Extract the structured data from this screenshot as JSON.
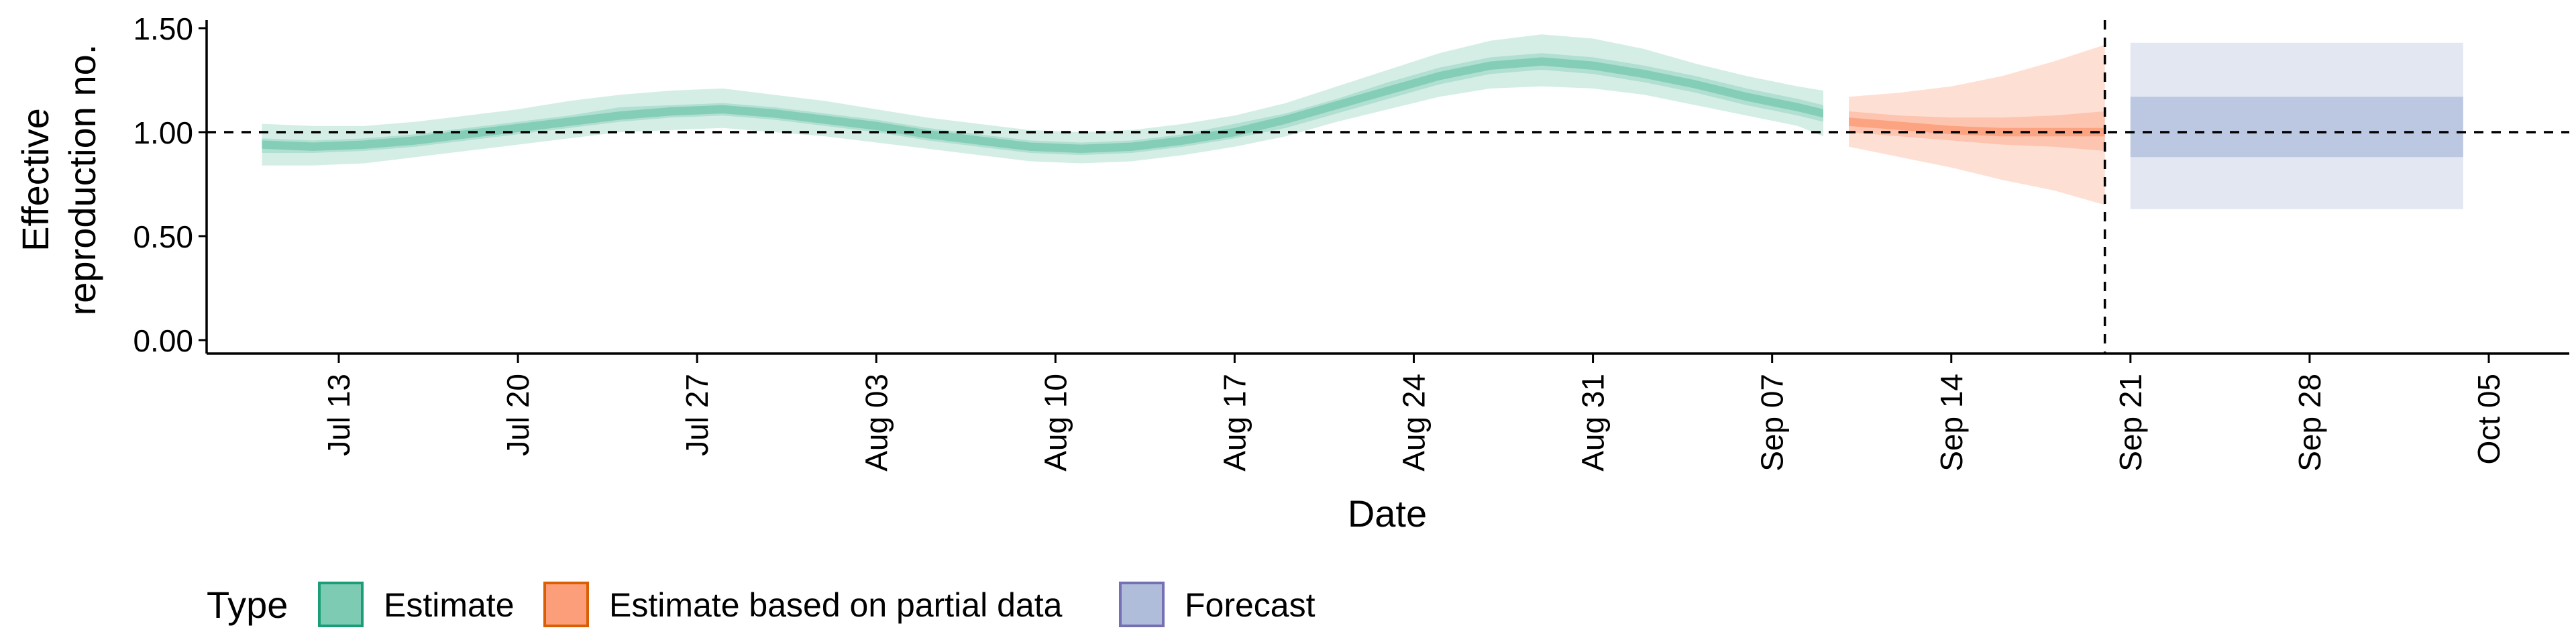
{
  "chart_data": {
    "type": "area",
    "title": "",
    "xlabel": "Date",
    "ylabel_lines": [
      "Effective",
      "reproduction no."
    ],
    "xlim": [
      "2020-07-05",
      "2020-10-07"
    ],
    "ylim": [
      0,
      1.55
    ],
    "yticks": [
      0.0,
      0.5,
      1.0,
      1.5
    ],
    "ytick_labels": [
      "0.00",
      "0.50",
      "1.00",
      "1.50"
    ],
    "xticks": [
      {
        "date": "2020-07-13",
        "label": "Jul 13"
      },
      {
        "date": "2020-07-20",
        "label": "Jul 20"
      },
      {
        "date": "2020-07-27",
        "label": "Jul 27"
      },
      {
        "date": "2020-08-03",
        "label": "Aug 03"
      },
      {
        "date": "2020-08-10",
        "label": "Aug 10"
      },
      {
        "date": "2020-08-17",
        "label": "Aug 17"
      },
      {
        "date": "2020-08-24",
        "label": "Aug 24"
      },
      {
        "date": "2020-08-31",
        "label": "Aug 31"
      },
      {
        "date": "2020-09-07",
        "label": "Sep 07"
      },
      {
        "date": "2020-09-14",
        "label": "Sep 14"
      },
      {
        "date": "2020-09-21",
        "label": "Sep 21"
      },
      {
        "date": "2020-09-28",
        "label": "Sep 28"
      },
      {
        "date": "2020-10-05",
        "label": "Oct 05"
      }
    ],
    "reference_line": {
      "y": 1.0,
      "style": "dashed"
    },
    "forecast_start_line": {
      "date": "2020-09-20",
      "style": "dashed"
    },
    "grid": false,
    "legend": {
      "title": "Type",
      "position": "bottom-left",
      "entries": [
        "Estimate",
        "Estimate based on partial data",
        "Forecast"
      ]
    },
    "series": [
      {
        "name": "Estimate",
        "fill": "#66c2a5",
        "border": "#1b9e77",
        "points": [
          {
            "date": "2020-07-10",
            "median": 0.94,
            "lo50": 0.9,
            "hi50": 0.97,
            "lo90": 0.84,
            "hi90": 1.04
          },
          {
            "date": "2020-07-12",
            "median": 0.93,
            "lo50": 0.9,
            "hi50": 0.96,
            "lo90": 0.84,
            "hi90": 1.03
          },
          {
            "date": "2020-07-14",
            "median": 0.94,
            "lo50": 0.91,
            "hi50": 0.97,
            "lo90": 0.85,
            "hi90": 1.03
          },
          {
            "date": "2020-07-16",
            "median": 0.96,
            "lo50": 0.93,
            "hi50": 0.99,
            "lo90": 0.88,
            "hi90": 1.05
          },
          {
            "date": "2020-07-18",
            "median": 0.99,
            "lo50": 0.96,
            "hi50": 1.02,
            "lo90": 0.91,
            "hi90": 1.08
          },
          {
            "date": "2020-07-20",
            "median": 1.02,
            "lo50": 0.99,
            "hi50": 1.05,
            "lo90": 0.94,
            "hi90": 1.11
          },
          {
            "date": "2020-07-22",
            "median": 1.05,
            "lo50": 1.02,
            "hi50": 1.08,
            "lo90": 0.97,
            "hi90": 1.15
          },
          {
            "date": "2020-07-24",
            "median": 1.08,
            "lo50": 1.05,
            "hi50": 1.12,
            "lo90": 1.0,
            "hi90": 1.18
          },
          {
            "date": "2020-07-26",
            "median": 1.1,
            "lo50": 1.07,
            "hi50": 1.13,
            "lo90": 1.01,
            "hi90": 1.2
          },
          {
            "date": "2020-07-28",
            "median": 1.11,
            "lo50": 1.08,
            "hi50": 1.14,
            "lo90": 1.02,
            "hi90": 1.21
          },
          {
            "date": "2020-07-30",
            "median": 1.09,
            "lo50": 1.06,
            "hi50": 1.12,
            "lo90": 1.0,
            "hi90": 1.18
          },
          {
            "date": "2020-08-01",
            "median": 1.06,
            "lo50": 1.03,
            "hi50": 1.09,
            "lo90": 0.98,
            "hi90": 1.15
          },
          {
            "date": "2020-08-03",
            "median": 1.03,
            "lo50": 1.0,
            "hi50": 1.06,
            "lo90": 0.95,
            "hi90": 1.11
          },
          {
            "date": "2020-08-05",
            "median": 0.99,
            "lo50": 0.96,
            "hi50": 1.02,
            "lo90": 0.92,
            "hi90": 1.07
          },
          {
            "date": "2020-08-07",
            "median": 0.96,
            "lo50": 0.93,
            "hi50": 0.99,
            "lo90": 0.89,
            "hi90": 1.04
          },
          {
            "date": "2020-08-09",
            "median": 0.93,
            "lo50": 0.9,
            "hi50": 0.96,
            "lo90": 0.86,
            "hi90": 1.01
          },
          {
            "date": "2020-08-11",
            "median": 0.92,
            "lo50": 0.89,
            "hi50": 0.95,
            "lo90": 0.85,
            "hi90": 1.0
          },
          {
            "date": "2020-08-13",
            "median": 0.93,
            "lo50": 0.9,
            "hi50": 0.96,
            "lo90": 0.86,
            "hi90": 1.01
          },
          {
            "date": "2020-08-15",
            "median": 0.96,
            "lo50": 0.93,
            "hi50": 0.99,
            "lo90": 0.89,
            "hi90": 1.04
          },
          {
            "date": "2020-08-17",
            "median": 1.0,
            "lo50": 0.97,
            "hi50": 1.04,
            "lo90": 0.93,
            "hi90": 1.08
          },
          {
            "date": "2020-08-19",
            "median": 1.06,
            "lo50": 1.02,
            "hi50": 1.09,
            "lo90": 0.98,
            "hi90": 1.14
          },
          {
            "date": "2020-08-21",
            "median": 1.13,
            "lo50": 1.09,
            "hi50": 1.16,
            "lo90": 1.05,
            "hi90": 1.22
          },
          {
            "date": "2020-08-23",
            "median": 1.2,
            "lo50": 1.16,
            "hi50": 1.24,
            "lo90": 1.11,
            "hi90": 1.3
          },
          {
            "date": "2020-08-25",
            "median": 1.27,
            "lo50": 1.23,
            "hi50": 1.31,
            "lo90": 1.17,
            "hi90": 1.38
          },
          {
            "date": "2020-08-27",
            "median": 1.32,
            "lo50": 1.28,
            "hi50": 1.36,
            "lo90": 1.21,
            "hi90": 1.44
          },
          {
            "date": "2020-08-29",
            "median": 1.34,
            "lo50": 1.3,
            "hi50": 1.38,
            "lo90": 1.22,
            "hi90": 1.47
          },
          {
            "date": "2020-08-31",
            "median": 1.32,
            "lo50": 1.28,
            "hi50": 1.36,
            "lo90": 1.21,
            "hi90": 1.45
          },
          {
            "date": "2020-09-02",
            "median": 1.28,
            "lo50": 1.24,
            "hi50": 1.32,
            "lo90": 1.18,
            "hi90": 1.4
          },
          {
            "date": "2020-09-04",
            "median": 1.23,
            "lo50": 1.19,
            "hi50": 1.27,
            "lo90": 1.13,
            "hi90": 1.33
          },
          {
            "date": "2020-09-06",
            "median": 1.17,
            "lo50": 1.13,
            "hi50": 1.21,
            "lo90": 1.08,
            "hi90": 1.27
          },
          {
            "date": "2020-09-08",
            "median": 1.12,
            "lo50": 1.08,
            "hi50": 1.16,
            "lo90": 1.03,
            "hi90": 1.22
          },
          {
            "date": "2020-09-09",
            "median": 1.09,
            "lo50": 1.05,
            "hi50": 1.13,
            "lo90": 0.98,
            "hi90": 1.2
          }
        ]
      },
      {
        "name": "Estimate based on partial data",
        "fill": "#fc8d62",
        "border": "#d95f02",
        "points": [
          {
            "date": "2020-09-10",
            "median": 1.05,
            "lo50": 1.0,
            "hi50": 1.1,
            "lo90": 0.93,
            "hi90": 1.17
          },
          {
            "date": "2020-09-12",
            "median": 1.03,
            "lo50": 0.98,
            "hi50": 1.08,
            "lo90": 0.88,
            "hi90": 1.19
          },
          {
            "date": "2020-09-14",
            "median": 1.01,
            "lo50": 0.96,
            "hi50": 1.07,
            "lo90": 0.83,
            "hi90": 1.22
          },
          {
            "date": "2020-09-16",
            "median": 1.0,
            "lo50": 0.94,
            "hi50": 1.07,
            "lo90": 0.77,
            "hi90": 1.27
          },
          {
            "date": "2020-09-18",
            "median": 1.0,
            "lo50": 0.93,
            "hi50": 1.08,
            "lo90": 0.72,
            "hi90": 1.34
          },
          {
            "date": "2020-09-20",
            "median": 1.0,
            "lo50": 0.91,
            "hi50": 1.1,
            "lo90": 0.65,
            "hi90": 1.42
          }
        ]
      },
      {
        "name": "Forecast",
        "fill": "#8da0cb",
        "border": "#7570b3",
        "points": [
          {
            "date": "2020-09-21",
            "median": 1.0,
            "lo50": 0.88,
            "hi50": 1.17,
            "lo90": 0.63,
            "hi90": 1.43
          },
          {
            "date": "2020-10-04",
            "median": 1.0,
            "lo50": 0.88,
            "hi50": 1.17,
            "lo90": 0.63,
            "hi90": 1.43
          }
        ]
      }
    ]
  }
}
